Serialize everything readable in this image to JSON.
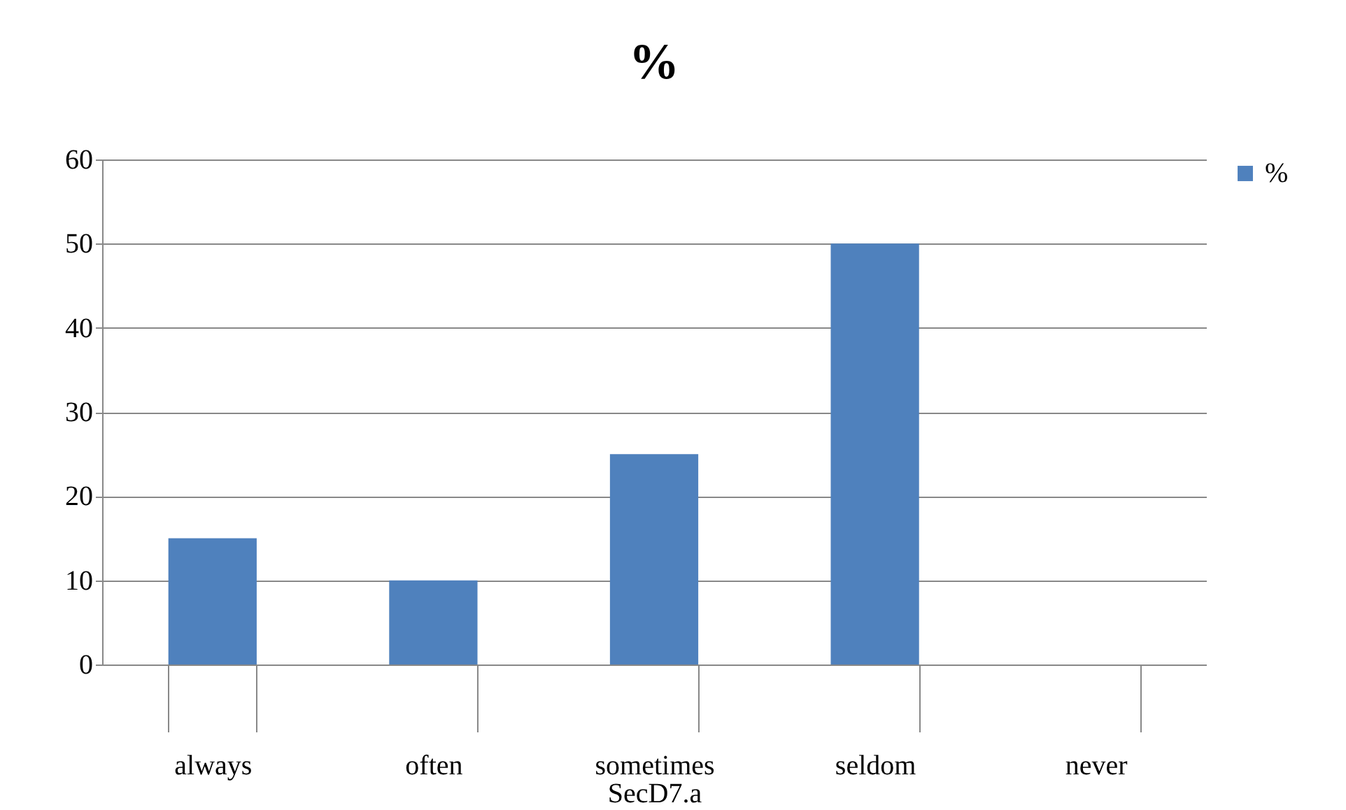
{
  "chart_data": {
    "type": "bar",
    "title": "%",
    "xlabel": "SecD7.a",
    "categories": [
      "always",
      "often",
      "sometimes",
      "seldom",
      "never"
    ],
    "series": [
      {
        "name": "%",
        "color": "#4f81bd",
        "values": [
          15,
          10,
          25,
          50,
          0
        ]
      }
    ],
    "ylim": [
      0,
      60
    ],
    "yticks": [
      0,
      10,
      20,
      30,
      40,
      50,
      60
    ],
    "grid": "y",
    "legend": "right"
  }
}
